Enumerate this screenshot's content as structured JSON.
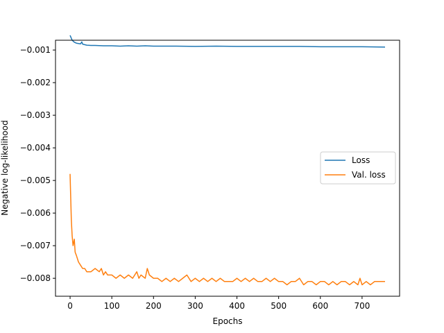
{
  "chart_data": {
    "type": "line",
    "xlabel": "Epochs",
    "ylabel": "Negative log-likelihood",
    "xlim": [
      -35,
      790
    ],
    "ylim": [
      -0.00855,
      -0.0007
    ],
    "xticks": [
      0,
      100,
      200,
      300,
      400,
      500,
      600,
      700
    ],
    "yticks": [
      -0.008,
      -0.007,
      -0.006,
      -0.005,
      -0.004,
      -0.003,
      -0.002,
      -0.001
    ],
    "ytick_labels": [
      "−0.008",
      "−0.007",
      "−0.006",
      "−0.005",
      "−0.004",
      "−0.003",
      "−0.002",
      "−0.001"
    ],
    "grid": false,
    "legend_position": "center-right",
    "series": [
      {
        "name": "Loss",
        "color": "#1f77b4",
        "x": [
          0,
          5,
          10,
          15,
          20,
          25,
          28,
          30,
          40,
          50,
          60,
          80,
          100,
          120,
          140,
          160,
          180,
          200,
          250,
          300,
          350,
          400,
          450,
          500,
          550,
          600,
          650,
          700,
          755
        ],
        "y": [
          -0.00055,
          -0.0007,
          -0.00076,
          -0.00079,
          -0.0008,
          -0.00081,
          -0.00075,
          -0.00082,
          -0.00085,
          -0.00086,
          -0.00086,
          -0.00087,
          -0.00087,
          -0.00088,
          -0.00087,
          -0.00088,
          -0.00087,
          -0.00088,
          -0.00088,
          -0.00089,
          -0.00088,
          -0.00089,
          -0.00089,
          -0.00089,
          -0.00089,
          -0.0009,
          -0.0009,
          -0.0009,
          -0.00091
        ]
      },
      {
        "name": "Val. loss",
        "color": "#ff7f0e",
        "x": [
          0,
          3,
          5,
          7,
          10,
          12,
          15,
          20,
          25,
          30,
          35,
          40,
          50,
          60,
          70,
          75,
          80,
          85,
          90,
          100,
          110,
          120,
          130,
          140,
          150,
          160,
          165,
          170,
          180,
          185,
          190,
          200,
          210,
          220,
          230,
          240,
          250,
          260,
          270,
          280,
          290,
          300,
          310,
          320,
          330,
          340,
          350,
          360,
          370,
          380,
          390,
          400,
          410,
          420,
          430,
          440,
          450,
          460,
          470,
          480,
          490,
          500,
          510,
          520,
          530,
          540,
          550,
          560,
          570,
          580,
          590,
          600,
          610,
          620,
          630,
          640,
          650,
          660,
          670,
          680,
          690,
          695,
          700,
          710,
          720,
          730,
          740,
          755
        ],
        "y": [
          -0.0048,
          -0.0062,
          -0.0067,
          -0.007,
          -0.0068,
          -0.0072,
          -0.0073,
          -0.0075,
          -0.0076,
          -0.0077,
          -0.0077,
          -0.0078,
          -0.0078,
          -0.0077,
          -0.0078,
          -0.0077,
          -0.0079,
          -0.0078,
          -0.0079,
          -0.0079,
          -0.008,
          -0.0079,
          -0.008,
          -0.0079,
          -0.008,
          -0.0078,
          -0.008,
          -0.0079,
          -0.008,
          -0.0077,
          -0.0079,
          -0.008,
          -0.008,
          -0.0081,
          -0.008,
          -0.0081,
          -0.008,
          -0.0081,
          -0.008,
          -0.0079,
          -0.0081,
          -0.008,
          -0.0081,
          -0.008,
          -0.0081,
          -0.008,
          -0.0081,
          -0.008,
          -0.0081,
          -0.0081,
          -0.0081,
          -0.008,
          -0.0081,
          -0.008,
          -0.0081,
          -0.008,
          -0.0081,
          -0.0081,
          -0.008,
          -0.0081,
          -0.008,
          -0.0081,
          -0.0081,
          -0.0082,
          -0.0081,
          -0.0081,
          -0.008,
          -0.0082,
          -0.0081,
          -0.0081,
          -0.0082,
          -0.0081,
          -0.0081,
          -0.0082,
          -0.0081,
          -0.0082,
          -0.0081,
          -0.0081,
          -0.0082,
          -0.0081,
          -0.0082,
          -0.008,
          -0.0082,
          -0.0081,
          -0.0082,
          -0.0081,
          -0.0081,
          -0.0081
        ]
      }
    ]
  }
}
